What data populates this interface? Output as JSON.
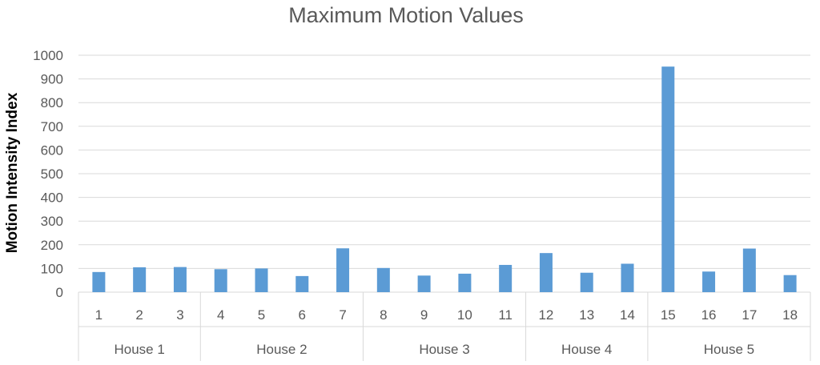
{
  "chart_data": {
    "type": "bar",
    "title": "Maximum Motion Values",
    "xlabel": "",
    "ylabel": "Motion Intensity Index",
    "ylim": [
      0,
      1000
    ],
    "yticks": [
      0,
      100,
      200,
      300,
      400,
      500,
      600,
      700,
      800,
      900,
      1000
    ],
    "grid": true,
    "categories": [
      "1",
      "2",
      "3",
      "4",
      "5",
      "6",
      "7",
      "8",
      "9",
      "10",
      "11",
      "12",
      "13",
      "14",
      "15",
      "16",
      "17",
      "18"
    ],
    "groups": [
      {
        "label": "House 1",
        "count": 3
      },
      {
        "label": "House 2",
        "count": 4
      },
      {
        "label": "House 3",
        "count": 4
      },
      {
        "label": "House 4",
        "count": 3
      },
      {
        "label": "House 5",
        "count": 4
      }
    ],
    "values": [
      85,
      105,
      106,
      97,
      100,
      68,
      185,
      102,
      70,
      78,
      115,
      165,
      82,
      120,
      952,
      87,
      184,
      72
    ],
    "bar_color": "#5b9bd5",
    "grid_color": "#d9d9d9"
  }
}
